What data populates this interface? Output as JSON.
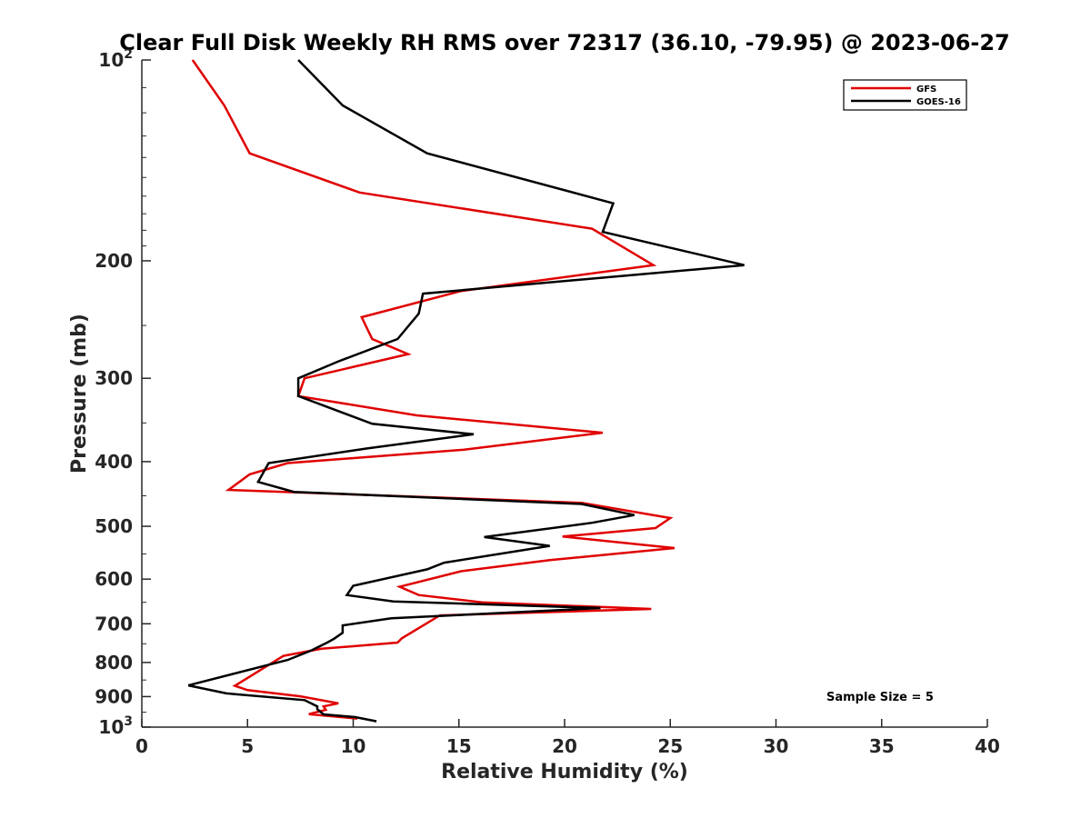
{
  "chart_data": {
    "type": "line",
    "title": "Clear Full Disk Weekly RH RMS over 72317 (36.10, -79.95) @ 2023-06-27",
    "xlabel": "Relative Humidity (%)",
    "ylabel": "Pressure (mb)",
    "xlim": [
      0,
      40
    ],
    "ylim": [
      100,
      1000
    ],
    "y_scale": "log",
    "y_reversed": true,
    "grid": false,
    "legend_position": "top-right",
    "x_ticks": [
      0,
      5,
      10,
      15,
      20,
      25,
      30,
      35,
      40
    ],
    "y_ticks": [
      {
        "value": 100,
        "base": "10",
        "exp": "2"
      },
      {
        "value": 200,
        "label": "200"
      },
      {
        "value": 300,
        "label": "300"
      },
      {
        "value": 400,
        "label": "400"
      },
      {
        "value": 500,
        "label": "500"
      },
      {
        "value": 600,
        "label": "600"
      },
      {
        "value": 700,
        "label": "700"
      },
      {
        "value": 800,
        "label": "800"
      },
      {
        "value": 900,
        "label": "900"
      },
      {
        "value": 1000,
        "base": "10",
        "exp": "3"
      }
    ],
    "annotation": "Sample Size = 5",
    "series": [
      {
        "name": "GFS",
        "color": "#e00000",
        "points": [
          [
            2.4,
            100
          ],
          [
            3.9,
            117
          ],
          [
            5.1,
            138
          ],
          [
            10.3,
            158
          ],
          [
            21.3,
            179
          ],
          [
            24.2,
            203
          ],
          [
            15.1,
            222
          ],
          [
            10.4,
            243
          ],
          [
            10.9,
            262
          ],
          [
            12.6,
            276
          ],
          [
            7.7,
            300
          ],
          [
            7.4,
            319
          ],
          [
            13.0,
            341
          ],
          [
            21.8,
            362
          ],
          [
            15.2,
            384
          ],
          [
            6.9,
            402
          ],
          [
            5.1,
            418
          ],
          [
            4.1,
            441
          ],
          [
            20.8,
            461
          ],
          [
            25.0,
            486
          ],
          [
            24.3,
            503
          ],
          [
            19.9,
            518
          ],
          [
            25.2,
            539
          ],
          [
            19.3,
            562
          ],
          [
            15.1,
            584
          ],
          [
            12.2,
            616
          ],
          [
            13.1,
            634
          ],
          [
            16.1,
            650
          ],
          [
            24.1,
            665
          ],
          [
            14.1,
            680
          ],
          [
            12.3,
            736
          ],
          [
            12.1,
            747
          ],
          [
            8.5,
            763
          ],
          [
            6.7,
            782
          ],
          [
            4.4,
            867
          ],
          [
            5.0,
            880
          ],
          [
            7.5,
            899
          ],
          [
            9.3,
            921
          ],
          [
            8.6,
            931
          ],
          [
            8.7,
            942
          ],
          [
            7.9,
            956
          ],
          [
            10.2,
            971
          ]
        ]
      },
      {
        "name": "GOES-16",
        "color": "#000000",
        "points": [
          [
            7.4,
            100
          ],
          [
            9.5,
            117
          ],
          [
            13.5,
            138
          ],
          [
            22.3,
            164
          ],
          [
            21.8,
            181
          ],
          [
            28.5,
            203
          ],
          [
            13.3,
            224
          ],
          [
            13.1,
            240
          ],
          [
            12.1,
            262
          ],
          [
            9.3,
            283
          ],
          [
            7.4,
            300
          ],
          [
            7.4,
            319
          ],
          [
            10.9,
            351
          ],
          [
            15.7,
            364
          ],
          [
            10.7,
            382
          ],
          [
            6.0,
            402
          ],
          [
            5.5,
            429
          ],
          [
            7.2,
            444
          ],
          [
            20.8,
            463
          ],
          [
            23.3,
            481
          ],
          [
            21.3,
            494
          ],
          [
            16.2,
            519
          ],
          [
            19.3,
            535
          ],
          [
            14.3,
            567
          ],
          [
            13.5,
            580
          ],
          [
            10.0,
            614
          ],
          [
            9.7,
            634
          ],
          [
            11.9,
            648
          ],
          [
            21.7,
            663
          ],
          [
            11.8,
            687
          ],
          [
            9.5,
            704
          ],
          [
            9.5,
            722
          ],
          [
            9.1,
            737
          ],
          [
            8.8,
            746
          ],
          [
            8.0,
            768
          ],
          [
            6.9,
            793
          ],
          [
            2.2,
            866
          ],
          [
            4.0,
            890
          ],
          [
            7.7,
            911
          ],
          [
            8.3,
            931
          ],
          [
            8.3,
            940
          ],
          [
            8.6,
            957
          ],
          [
            10.1,
            966
          ],
          [
            11.1,
            980
          ]
        ]
      }
    ]
  }
}
